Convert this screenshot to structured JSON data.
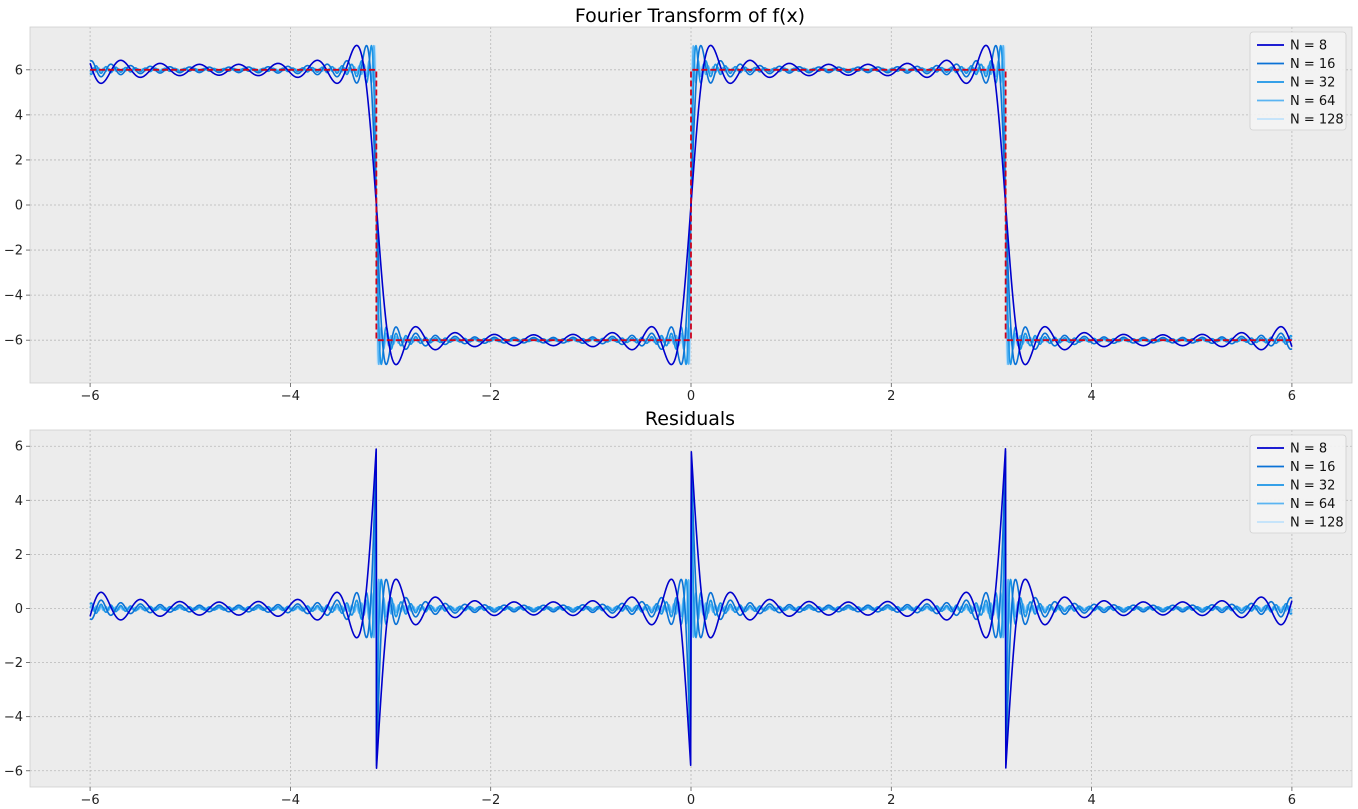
{
  "colors": {
    "axes_bg": "#ececec",
    "grid": "#b8b8b8",
    "target": "#d0021b",
    "series": [
      "#0000cd",
      "#0a72d6",
      "#1a94e6",
      "#5ab4f2",
      "#bfe2fb"
    ]
  },
  "chart_data": [
    {
      "type": "line",
      "title": "Fourier Transform of f(x)",
      "xlabel": "",
      "ylabel": "",
      "xlim": [
        -6.6,
        6.6
      ],
      "ylim": [
        -7.9,
        7.9
      ],
      "xticks": [
        -6,
        -4,
        -2,
        0,
        2,
        4,
        6
      ],
      "xtick_labels": [
        "−6",
        "−4",
        "−2",
        "0",
        "2",
        "4",
        "6"
      ],
      "yticks": [
        -6,
        -4,
        -2,
        0,
        2,
        4,
        6
      ],
      "ytick_labels": [
        "−6",
        "−4",
        "−2",
        "0",
        "2",
        "4",
        "6"
      ],
      "x_range": [
        -6,
        6
      ],
      "function": "square wave of amplitude 6, period 2π (partial Fourier sums)",
      "amplitude": 6,
      "grid": true,
      "legend": "top-right",
      "reference": {
        "style": "dashed",
        "color": "#d0021b",
        "description": "square wave f(x)"
      },
      "series": [
        {
          "name": "N = 8",
          "N": 8
        },
        {
          "name": "N = 16",
          "N": 16
        },
        {
          "name": "N = 32",
          "N": 32
        },
        {
          "name": "N = 64",
          "N": 64
        },
        {
          "name": "N = 128",
          "N": 128
        }
      ]
    },
    {
      "type": "line",
      "title": "Residuals",
      "xlabel": "",
      "ylabel": "",
      "xlim": [
        -6.6,
        6.6
      ],
      "ylim": [
        -6.6,
        6.6
      ],
      "xticks": [
        -6,
        -4,
        -2,
        0,
        2,
        4,
        6
      ],
      "xtick_labels": [
        "−6",
        "−4",
        "−2",
        "0",
        "2",
        "4",
        "6"
      ],
      "yticks": [
        -6,
        -4,
        -2,
        0,
        2,
        4,
        6
      ],
      "ytick_labels": [
        "−6",
        "−4",
        "−2",
        "0",
        "2",
        "4",
        "6"
      ],
      "x_range": [
        -6,
        6
      ],
      "function": "f(x) minus partial Fourier sum",
      "grid": true,
      "legend": "top-right",
      "series": [
        {
          "name": "N = 8",
          "N": 8
        },
        {
          "name": "N = 16",
          "N": 16
        },
        {
          "name": "N = 32",
          "N": 32
        },
        {
          "name": "N = 64",
          "N": 64
        },
        {
          "name": "N = 128",
          "N": 128
        }
      ]
    }
  ]
}
